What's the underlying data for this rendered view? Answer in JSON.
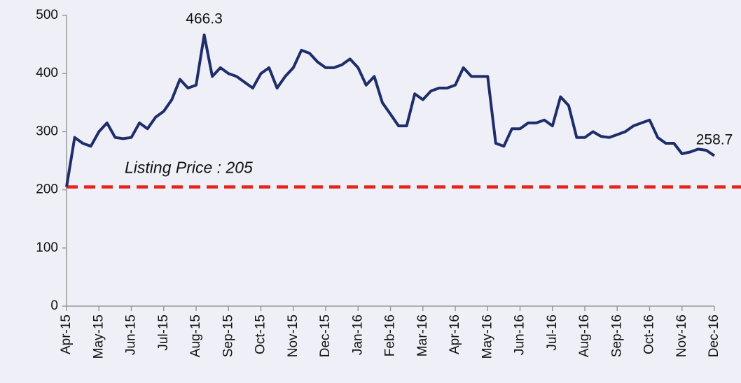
{
  "chart_data": {
    "type": "line",
    "categories": [
      "Apr-15",
      null,
      null,
      null,
      "May-15",
      null,
      null,
      null,
      "Jun-15",
      null,
      null,
      null,
      "Jul-15",
      null,
      null,
      null,
      "Aug-15",
      null,
      null,
      null,
      "Sep-15",
      null,
      null,
      null,
      "Oct-15",
      null,
      null,
      null,
      "Nov-15",
      null,
      null,
      null,
      "Dec-15",
      null,
      null,
      null,
      "Jan-16",
      null,
      null,
      null,
      "Feb-16",
      null,
      null,
      null,
      "Mar-16",
      null,
      null,
      null,
      "Apr-16",
      null,
      null,
      null,
      "May-16",
      null,
      null,
      null,
      "Jun-16",
      null,
      null,
      null,
      "Jul-16",
      null,
      null,
      null,
      "Aug-16",
      null,
      null,
      null,
      "Sep-16",
      null,
      null,
      null,
      "Oct-16",
      null,
      null,
      null,
      "Nov-16",
      null,
      null,
      null,
      "Dec-16"
    ],
    "series": [
      {
        "color": "#1f2d6b",
        "values": [
          205,
          290,
          280,
          275,
          300,
          315,
          290,
          288,
          290,
          315,
          305,
          325,
          335,
          355,
          390,
          375,
          380,
          466.3,
          395,
          410,
          400,
          395,
          385,
          375,
          400,
          410,
          375,
          395,
          410,
          440,
          435,
          420,
          410,
          410,
          415,
          425,
          410,
          380,
          395,
          350,
          330,
          310,
          310,
          365,
          355,
          370,
          375,
          375,
          380,
          410,
          395,
          395,
          395,
          280,
          275,
          305,
          305,
          315,
          315,
          320,
          310,
          360,
          345,
          290,
          290,
          300,
          292,
          290,
          295,
          300,
          310,
          315,
          320,
          290,
          280,
          280,
          262,
          265,
          270,
          268,
          258.7
        ]
      }
    ],
    "reference_line": {
      "label": "Listing Price : 205",
      "value": 205,
      "color": "#e8231f"
    },
    "ylim": [
      0,
      500
    ],
    "yticks": [
      0,
      100,
      200,
      300,
      400,
      500
    ],
    "grid": false
  }
}
